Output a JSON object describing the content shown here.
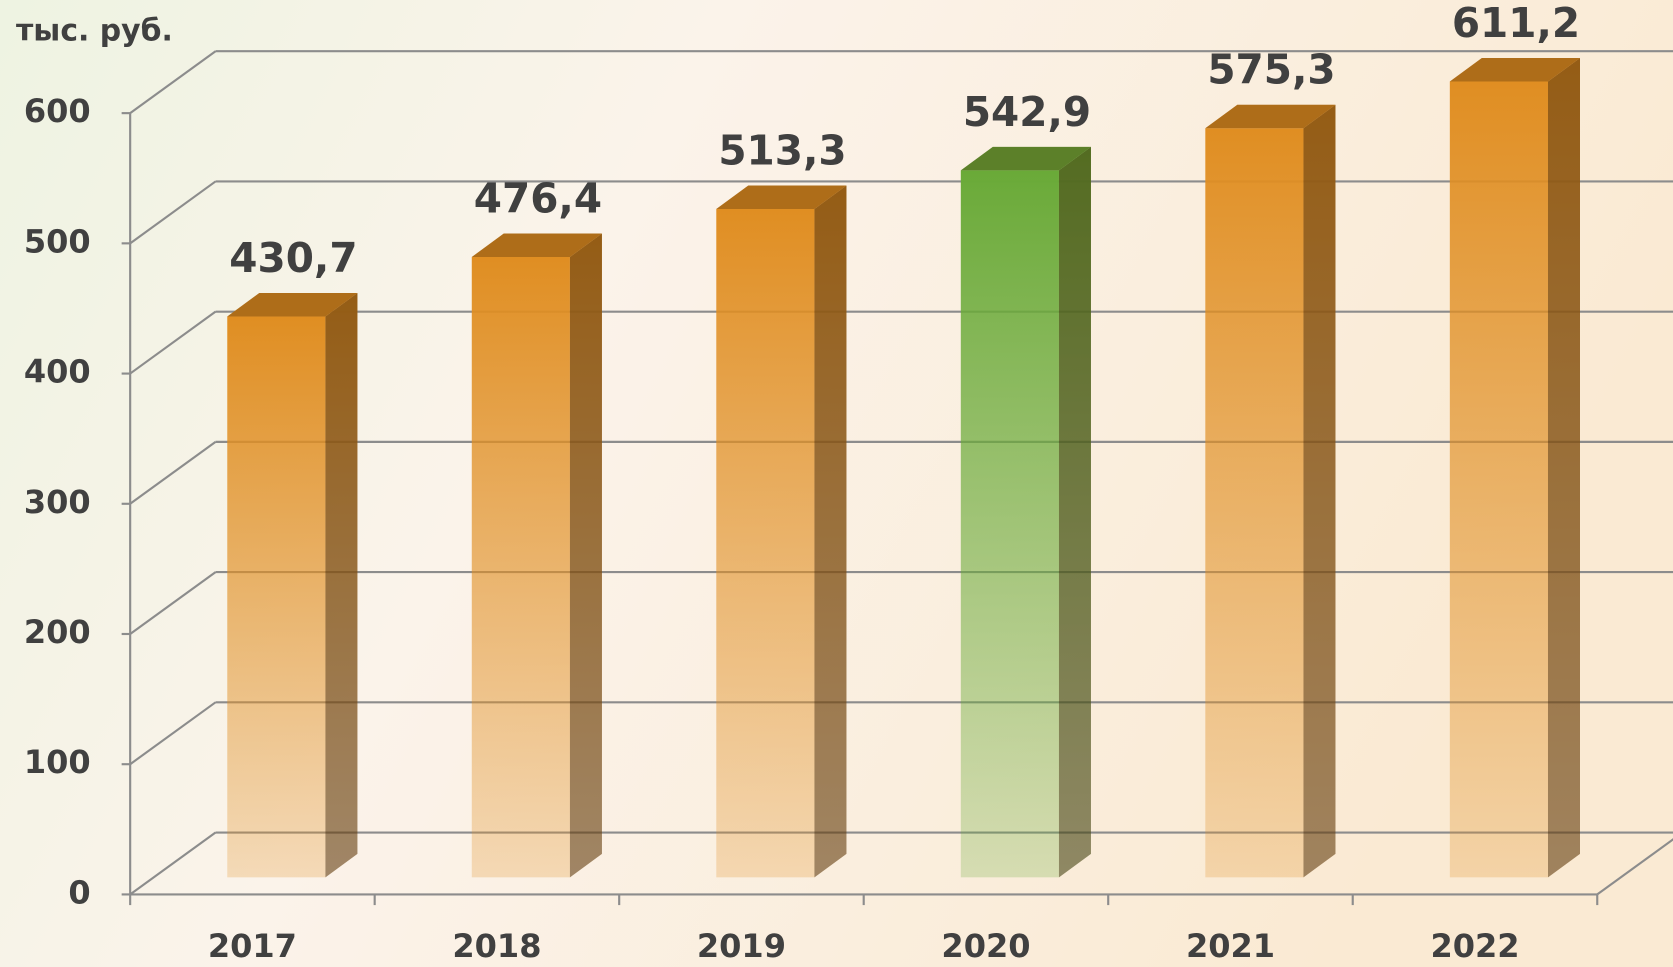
{
  "chart_data": {
    "type": "bar3d",
    "y_label": "тыс. руб.",
    "categories": [
      "2017",
      "2018",
      "2019",
      "2020",
      "2021",
      "2022"
    ],
    "values": [
      430.7,
      476.4,
      513.3,
      542.9,
      575.3,
      611.2
    ],
    "value_labels": [
      "430,7",
      "476,4",
      "513,3",
      "542,9",
      "575,3",
      "611,2"
    ],
    "colors": [
      "#e08e22",
      "#e08e22",
      "#e08e22",
      "#6aaa38",
      "#e08e22",
      "#e08e22"
    ],
    "ylim": [
      0,
      600
    ],
    "yticks": [
      0,
      100,
      200,
      300,
      400,
      500,
      600
    ],
    "grid": true
  }
}
